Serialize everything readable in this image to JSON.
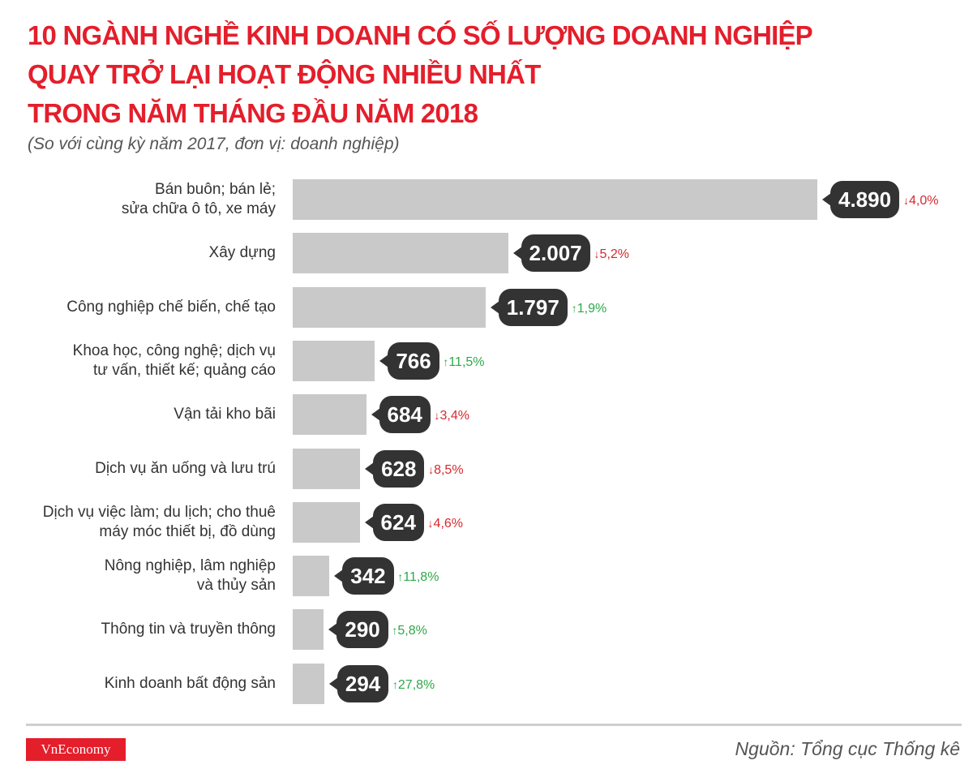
{
  "chart_data": {
    "type": "bar",
    "orientation": "horizontal",
    "title": [
      "10 NGÀNH NGHỀ KINH DOANH CÓ SỐ LƯỢNG DOANH NGHIỆP",
      "QUAY TRỞ LẠI HOẠT ĐỘNG NHIỀU NHẤT",
      "TRONG NĂM THÁNG ĐẦU NĂM 2018"
    ],
    "subtitle": "(So với cùng kỳ năm 2017, đơn vị: doanh nghiệp)",
    "categories": [
      [
        "Bán buôn; bán lẻ;",
        "sửa chữa ô tô, xe máy"
      ],
      [
        "Xây dựng"
      ],
      [
        "Công nghiệp chế biến, chế tạo"
      ],
      [
        "Khoa học, công nghệ; dịch vụ",
        "tư vấn, thiết kế; quảng cáo"
      ],
      [
        "Vận tải kho bãi"
      ],
      [
        "Dịch vụ ăn uống và lưu trú"
      ],
      [
        "Dịch vụ việc làm; du lịch; cho thuê",
        "máy móc thiết bị, đồ dùng"
      ],
      [
        "Nông nghiệp, lâm nghiệp",
        "và thủy sản"
      ],
      [
        "Thông tin và truyền thông"
      ],
      [
        "Kinh doanh bất động sản"
      ]
    ],
    "values": [
      4890,
      2007,
      1797,
      766,
      684,
      628,
      624,
      342,
      290,
      294
    ],
    "value_labels": [
      "4.890",
      "2.007",
      "1.797",
      "766",
      "684",
      "628",
      "624",
      "342",
      "290",
      "294"
    ],
    "changes": [
      {
        "direction": "down",
        "text": "4,0%"
      },
      {
        "direction": "down",
        "text": "5,2%"
      },
      {
        "direction": "up",
        "text": "1,9%"
      },
      {
        "direction": "up",
        "text": "11,5%"
      },
      {
        "direction": "down",
        "text": "3,4%"
      },
      {
        "direction": "down",
        "text": "8,5%"
      },
      {
        "direction": "down",
        "text": "4,6%"
      },
      {
        "direction": "up",
        "text": "11,8%"
      },
      {
        "direction": "up",
        "text": "5,8%"
      },
      {
        "direction": "up",
        "text": "27,8%"
      }
    ],
    "colors": {
      "bar": "#c9c9c9",
      "label_bubble": "#333333",
      "down": "#d7282f",
      "up": "#2ea84a",
      "title": "#e41e2b"
    },
    "grid": false
  },
  "footer": {
    "logo": "VnEconomy",
    "source": "Nguồn: Tổng cục Thống kê"
  }
}
